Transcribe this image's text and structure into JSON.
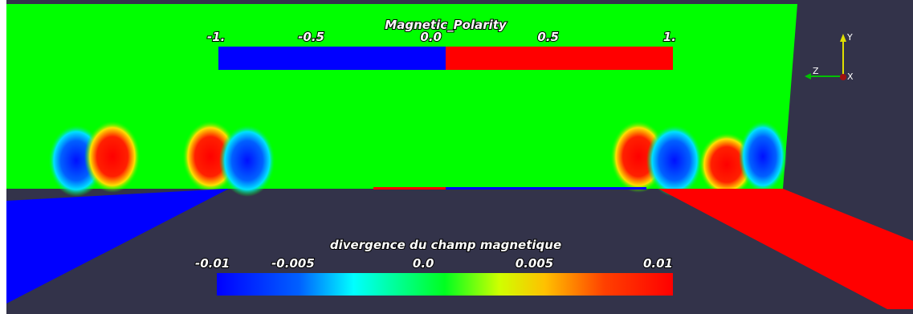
{
  "polarity_bar": {
    "title": "Magnetic_Polarity",
    "ticks": [
      "-1.",
      "-0.5",
      "0.0",
      "0.5",
      "1."
    ]
  },
  "divergence_bar": {
    "title": "divergence du champ magnetique",
    "ticks": [
      "-0.01",
      "-0.005",
      "0.0",
      "0.005",
      "0.01"
    ]
  },
  "axes": {
    "y": "Y",
    "z": "Z",
    "x": "X"
  }
}
